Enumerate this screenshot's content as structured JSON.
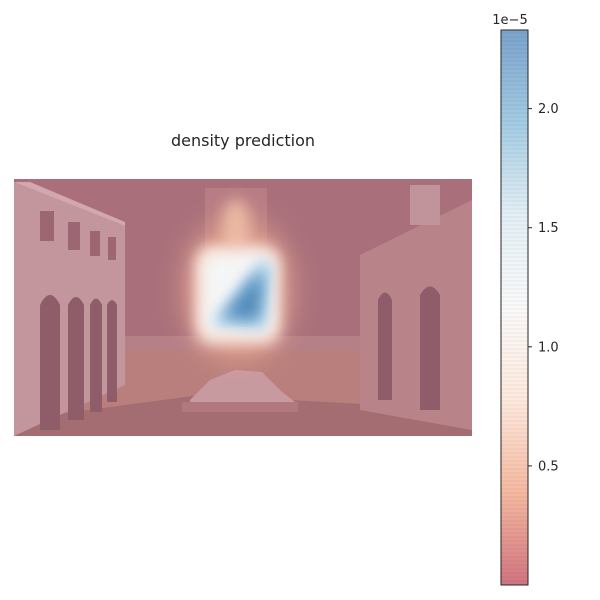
{
  "chart_data": {
    "type": "heatmap",
    "title": "density prediction",
    "colormap": "RdBu",
    "colormap_colors": [
      "#b2182b",
      "#ef8a62",
      "#fddbc7",
      "#f7f7f7",
      "#d1e5f0",
      "#67a9cf",
      "#2166ac"
    ],
    "overlay_alpha": 0.5,
    "axes_visible": false,
    "colorbar": {
      "orientation": "vertical",
      "position": "right",
      "range": [
        0,
        2.33
      ],
      "ticks": [
        0.5,
        1.0,
        1.5,
        2.0
      ],
      "tick_labels": [
        "0.5",
        "1.0",
        "1.5",
        "2.0"
      ],
      "offset_label": "1e−5"
    },
    "density": {
      "peak_value": 2.3,
      "peak_region": "center, around the bright tower base",
      "background_value": 0.02
    }
  }
}
